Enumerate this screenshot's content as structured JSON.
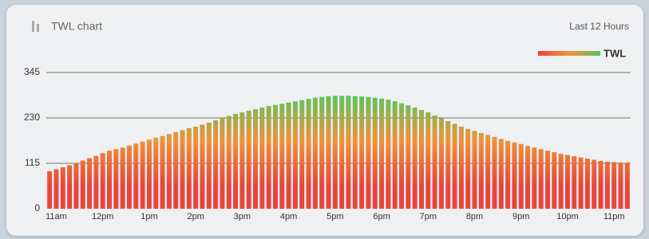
{
  "chart_data": {
    "type": "bar",
    "title": "TWL chart",
    "subtitle": "Last 12 Hours",
    "legend": "TWL",
    "legend_position": "top-right",
    "colors": [
      "#e8453c",
      "#f0923a",
      "#5cc45c"
    ],
    "categories": [
      null,
      "11am",
      null,
      null,
      null,
      null,
      null,
      null,
      "12pm",
      null,
      null,
      null,
      null,
      null,
      null,
      "1pm",
      null,
      null,
      null,
      null,
      null,
      null,
      "2pm",
      null,
      null,
      null,
      null,
      null,
      null,
      "3pm",
      null,
      null,
      null,
      null,
      null,
      null,
      "4pm",
      null,
      null,
      null,
      null,
      null,
      null,
      "5pm",
      null,
      null,
      null,
      null,
      null,
      null,
      "6pm",
      null,
      null,
      null,
      null,
      null,
      null,
      "7pm",
      null,
      null,
      null,
      null,
      null,
      null,
      "8pm",
      null,
      null,
      null,
      null,
      null,
      null,
      "9pm",
      null,
      null,
      null,
      null,
      null,
      null,
      "10pm",
      null,
      null,
      null,
      null,
      null,
      null,
      "11pm",
      null,
      null
    ],
    "values": [
      95,
      100,
      105,
      110,
      116,
      122,
      128,
      134,
      141,
      147,
      151,
      155,
      160,
      165,
      170,
      175,
      180,
      184,
      189,
      194,
      199,
      204,
      208,
      213,
      218,
      224,
      230,
      235,
      240,
      244,
      248,
      252,
      256,
      260,
      263,
      266,
      269,
      272,
      275,
      278,
      281,
      283,
      285,
      286,
      286,
      286,
      285,
      284,
      283,
      281,
      279,
      276,
      272,
      267,
      262,
      256,
      250,
      244,
      236,
      229,
      222,
      215,
      208,
      202,
      197,
      192,
      187,
      182,
      177,
      172,
      168,
      164,
      159,
      155,
      151,
      147,
      143,
      139,
      136,
      133,
      130,
      127,
      124,
      121,
      119,
      118,
      117,
      117
    ],
    "ylim": [
      0,
      345
    ],
    "yticks": [
      0,
      115,
      230,
      345
    ],
    "grid": true
  }
}
